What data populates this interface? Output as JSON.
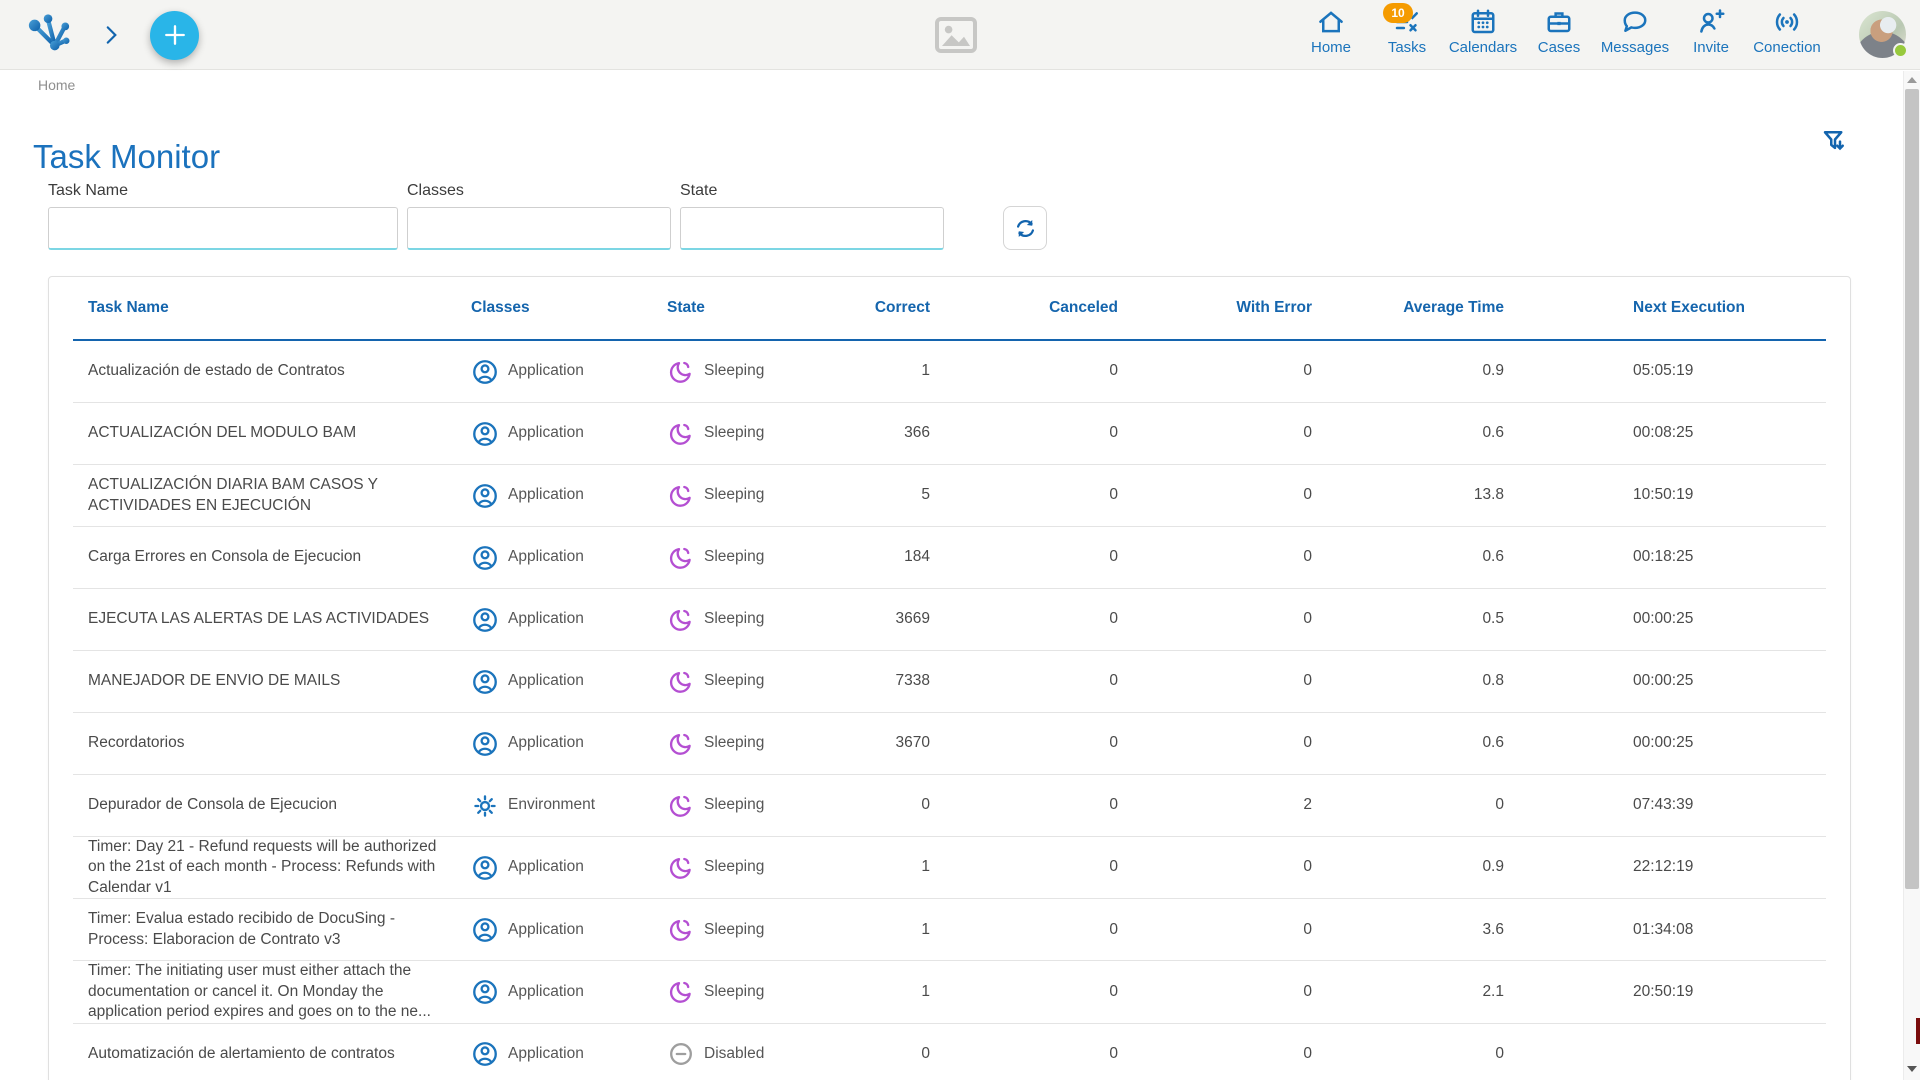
{
  "colors": {
    "primary_blue": "#1b74bc",
    "title_blue": "#1b72bd",
    "header_blue": "#1565ad",
    "accent_cyan": "#29b5e8",
    "input_underline_cyan": "#7cd6e4",
    "badge_orange": "#f59b00",
    "sleeping_purple": "#b44fd2",
    "disabled_gray": "#9e9e9e",
    "status_green": "#97c93d"
  },
  "topbar": {
    "logo_icon": "app-logo",
    "expand_icon": "chevron-right-icon",
    "add_button_icon": "plus-icon",
    "center_icon": "image-placeholder-icon",
    "nav": [
      {
        "label": "Home",
        "icon": "home-icon"
      },
      {
        "label": "Tasks",
        "icon": "tasks-icon",
        "badge": "10"
      },
      {
        "label": "Calendars",
        "icon": "calendar-icon"
      },
      {
        "label": "Cases",
        "icon": "briefcase-icon"
      },
      {
        "label": "Messages",
        "icon": "message-icon"
      },
      {
        "label": "Invite",
        "icon": "invite-icon"
      },
      {
        "label": "Conection",
        "icon": "connection-icon"
      }
    ],
    "avatar": {
      "status": "online"
    }
  },
  "breadcrumb": {
    "label": "Home"
  },
  "page": {
    "title": "Task Monitor",
    "filter_icon": "filter-download-icon"
  },
  "filters": {
    "fields": [
      {
        "label": "Task Name",
        "value": "",
        "placeholder": ""
      },
      {
        "label": "Classes",
        "value": "",
        "placeholder": ""
      },
      {
        "label": "State",
        "value": "",
        "placeholder": ""
      }
    ],
    "refresh_icon": "refresh-icon"
  },
  "table": {
    "headers": [
      "Task Name",
      "Classes",
      "State",
      "Correct",
      "Canceled",
      "With Error",
      "Average Time",
      "Next Execution"
    ],
    "rows": [
      {
        "name": "Actualización de estado de Contratos",
        "class": "Application",
        "class_icon": "application-icon",
        "state": "Sleeping",
        "state_icon": "sleeping-icon",
        "correct": "1",
        "canceled": "0",
        "with_error": "0",
        "average_time": "0.9",
        "next_execution": "05:05:19"
      },
      {
        "name": "ACTUALIZACIÓN DEL MODULO BAM",
        "class": "Application",
        "class_icon": "application-icon",
        "state": "Sleeping",
        "state_icon": "sleeping-icon",
        "correct": "366",
        "canceled": "0",
        "with_error": "0",
        "average_time": "0.6",
        "next_execution": "00:08:25"
      },
      {
        "name": "ACTUALIZACIÓN DIARIA BAM CASOS Y ACTIVIDADES EN EJECUCIÓN",
        "class": "Application",
        "class_icon": "application-icon",
        "state": "Sleeping",
        "state_icon": "sleeping-icon",
        "correct": "5",
        "canceled": "0",
        "with_error": "0",
        "average_time": "13.8",
        "next_execution": "10:50:19"
      },
      {
        "name": "Carga Errores en Consola de Ejecucion",
        "class": "Application",
        "class_icon": "application-icon",
        "state": "Sleeping",
        "state_icon": "sleeping-icon",
        "correct": "184",
        "canceled": "0",
        "with_error": "0",
        "average_time": "0.6",
        "next_execution": "00:18:25"
      },
      {
        "name": "EJECUTA LAS ALERTAS DE LAS ACTIVIDADES",
        "class": "Application",
        "class_icon": "application-icon",
        "state": "Sleeping",
        "state_icon": "sleeping-icon",
        "correct": "3669",
        "canceled": "0",
        "with_error": "0",
        "average_time": "0.5",
        "next_execution": "00:00:25"
      },
      {
        "name": "MANEJADOR DE ENVIO DE MAILS",
        "class": "Application",
        "class_icon": "application-icon",
        "state": "Sleeping",
        "state_icon": "sleeping-icon",
        "correct": "7338",
        "canceled": "0",
        "with_error": "0",
        "average_time": "0.8",
        "next_execution": "00:00:25"
      },
      {
        "name": "Recordatorios",
        "class": "Application",
        "class_icon": "application-icon",
        "state": "Sleeping",
        "state_icon": "sleeping-icon",
        "correct": "3670",
        "canceled": "0",
        "with_error": "0",
        "average_time": "0.6",
        "next_execution": "00:00:25"
      },
      {
        "name": "Depurador de Consola de Ejecucion",
        "class": "Environment",
        "class_icon": "gear-icon",
        "state": "Sleeping",
        "state_icon": "sleeping-icon",
        "correct": "0",
        "canceled": "0",
        "with_error": "2",
        "average_time": "0",
        "next_execution": "07:43:39"
      },
      {
        "name": "Timer: Day 21 - Refund requests will be authorized on the 21st of each month - Process: Refunds with Calendar v1",
        "class": "Application",
        "class_icon": "application-icon",
        "state": "Sleeping",
        "state_icon": "sleeping-icon",
        "correct": "1",
        "canceled": "0",
        "with_error": "0",
        "average_time": "0.9",
        "next_execution": "22:12:19"
      },
      {
        "name": "Timer: Evalua estado recibido de DocuSing - Process: Elaboracion de Contrato v3",
        "class": "Application",
        "class_icon": "application-icon",
        "state": "Sleeping",
        "state_icon": "sleeping-icon",
        "correct": "1",
        "canceled": "0",
        "with_error": "0",
        "average_time": "3.6",
        "next_execution": "01:34:08"
      },
      {
        "name": "Timer: The initiating user must either attach the documentation or cancel it. On Monday the application period expires and goes on to the ne...",
        "class": "Application",
        "class_icon": "application-icon",
        "state": "Sleeping",
        "state_icon": "sleeping-icon",
        "correct": "1",
        "canceled": "0",
        "with_error": "0",
        "average_time": "2.1",
        "next_execution": "20:50:19"
      },
      {
        "name": "Automatización de alertamiento de contratos",
        "class": "Application",
        "class_icon": "application-icon",
        "state": "Disabled",
        "state_icon": "disabled-icon",
        "correct": "0",
        "canceled": "0",
        "with_error": "0",
        "average_time": "0",
        "next_execution": ""
      }
    ]
  }
}
